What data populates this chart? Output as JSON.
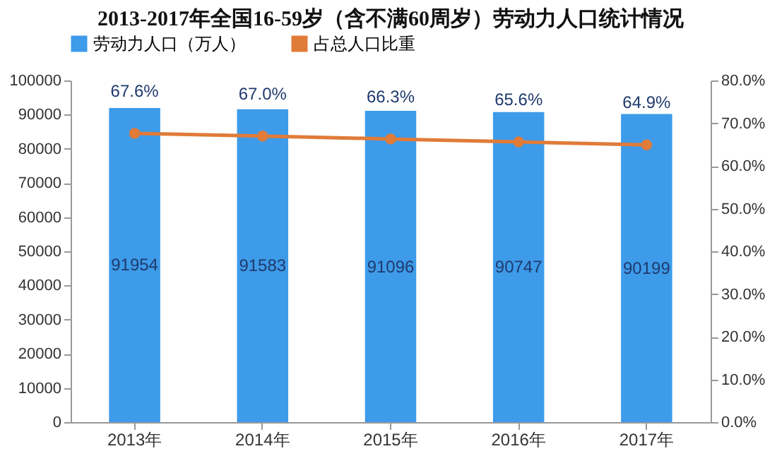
{
  "chart_data": {
    "type": "bar",
    "title": "2013-2017年全国16-59岁（含不满60周岁）劳动力人口统计情况",
    "categories": [
      "2013年",
      "2014年",
      "2015年",
      "2016年",
      "2017年"
    ],
    "series": [
      {
        "name": "劳动力人口（万人）",
        "color": "#3d9be9",
        "values": [
          91954,
          91583,
          91096,
          90747,
          90199
        ],
        "value_labels": [
          "91954",
          "91583",
          "91096",
          "90747",
          "90199"
        ]
      },
      {
        "name": "占总人口比重",
        "type": "line",
        "axis": "y2",
        "color": "#e07b39",
        "marker": "circle",
        "values": [
          67.6,
          67.0,
          66.3,
          65.6,
          64.9
        ],
        "value_labels": [
          "67.6%",
          "67.0%",
          "66.3%",
          "65.6%",
          "64.9%"
        ]
      }
    ],
    "ylim": [
      0,
      100000
    ],
    "yticks": [
      0,
      10000,
      20000,
      30000,
      40000,
      50000,
      60000,
      70000,
      80000,
      90000,
      100000
    ],
    "y2lim": [
      0,
      80
    ],
    "y2ticks": [
      {
        "value": 0,
        "label": "0.0%"
      },
      {
        "value": 10,
        "label": "10.0%"
      },
      {
        "value": 20,
        "label": "20.0%"
      },
      {
        "value": 30,
        "label": "30.0%"
      },
      {
        "value": 40,
        "label": "40.0%"
      },
      {
        "value": 50,
        "label": "50.0%"
      },
      {
        "value": 60,
        "label": "60.0%"
      },
      {
        "value": 70,
        "label": "70.0%"
      },
      {
        "value": 80,
        "label": "80.0%"
      }
    ],
    "legend": "top",
    "grid": false
  }
}
